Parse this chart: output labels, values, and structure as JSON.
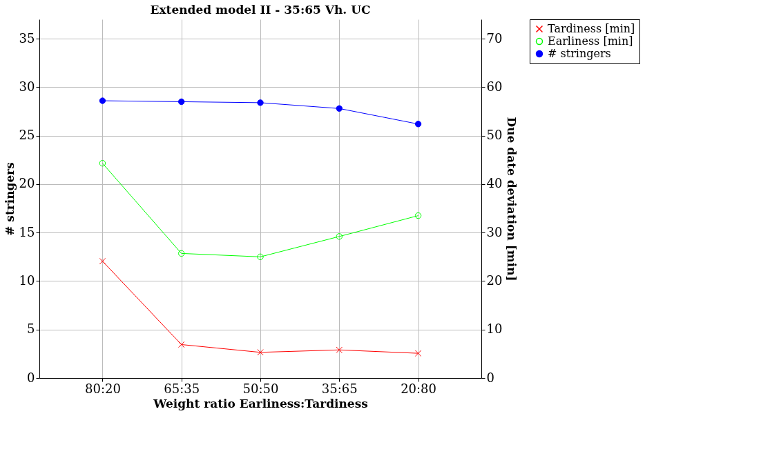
{
  "chart_data": {
    "type": "line",
    "title": "Extended model II - 35:65 Vh. UC",
    "xlabel": "Weight ratio Earliness:Tardiness",
    "ylabel": "# stringers",
    "y2label": "Due date deviation [min]",
    "categories": [
      "80:20",
      "65:35",
      "50:50",
      "35:65",
      "20:80"
    ],
    "series": [
      {
        "name": "Tardiness [min]",
        "color": "#ff0000",
        "axis": "y2",
        "marker": "cross",
        "values": [
          24.1,
          6.9,
          5.3,
          5.8,
          5.1
        ]
      },
      {
        "name": "Earliness [min]",
        "color": "#00ff00",
        "axis": "y2",
        "marker": "circle",
        "values": [
          44.3,
          25.7,
          25.0,
          29.2,
          33.5
        ]
      },
      {
        "name": "# stringers",
        "color": "#0000ff",
        "marker": "circle",
        "values": [
          28.6,
          28.5,
          28.4,
          27.8,
          26.2
        ]
      }
    ],
    "ylim": [
      0,
      37
    ],
    "yticks": [
      0,
      5,
      10,
      15,
      20,
      25,
      30,
      35
    ],
    "y2lim": [
      0,
      74
    ],
    "y2ticks": [
      0,
      10,
      20,
      30,
      40,
      50,
      60,
      70
    ],
    "grid": true,
    "legend": "right"
  }
}
